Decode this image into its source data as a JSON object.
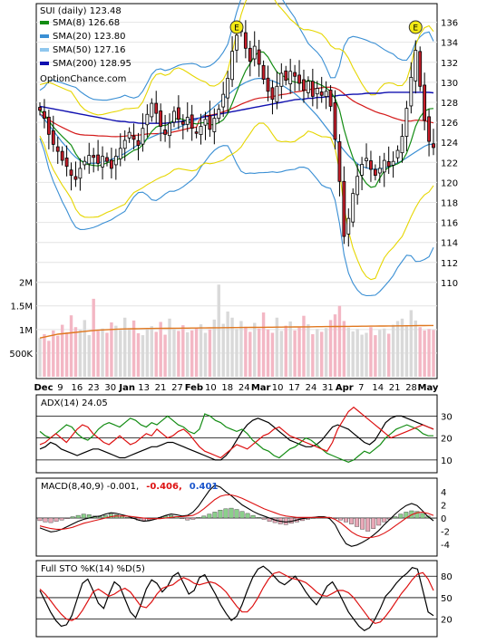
{
  "chart_data": [
    {
      "type": "candlestick",
      "panel": "price",
      "title": "SUI (daily) 123.48",
      "source_label": "OptionChance.com",
      "earnings_marker": "E",
      "legend": [
        {
          "name": "SMA(8) 126.68",
          "color": "#138c13"
        },
        {
          "name": "SMA(20) 123.80",
          "color": "#3a8fd4"
        },
        {
          "name": "SMA(50) 127.16",
          "color": "#8fc7ee"
        },
        {
          "name": "SMA(200) 128.95",
          "color": "#1010b0"
        }
      ],
      "y_ticks": [
        "110",
        "112",
        "114",
        "116",
        "118",
        "120",
        "122",
        "124",
        "126",
        "128",
        "130",
        "132",
        "134",
        "136"
      ],
      "ylim": [
        108,
        137.5
      ],
      "x_labels": [
        "Dec",
        "9",
        "16",
        "23",
        "30",
        "Jan",
        "13",
        "21",
        "27",
        "Feb",
        "10",
        "18",
        "24",
        "Mar",
        "10",
        "17",
        "24",
        "31",
        "Apr",
        "7",
        "14",
        "21",
        "28",
        "May"
      ],
      "last_close": 123.48,
      "price_path": [
        127.2,
        126.4,
        124.8,
        123.8,
        123.1,
        122.2,
        121.6,
        120.7,
        120.3,
        121.4,
        122.1,
        122.7,
        122.5,
        121.9,
        122.6,
        122.1,
        121.4,
        122.6,
        123.4,
        124.2,
        125.0,
        124.3,
        123.7,
        125.4,
        126.8,
        127.9,
        126.9,
        125.6,
        124.8,
        125.9,
        127.1,
        126.3,
        125.8,
        126.5,
        125.4,
        124.9,
        125.6,
        126.3,
        125.3,
        126.4,
        127.3,
        128.8,
        130.4,
        133.1,
        134.7,
        135.2,
        133.4,
        132.1,
        133.6,
        131.8,
        130.3,
        129.1,
        128.3,
        129.6,
        130.9,
        130.2,
        131.1,
        130.6,
        129.9,
        129.2,
        130.1,
        128.6,
        129.4,
        128.7,
        129.1,
        127.6,
        124.3,
        120.1,
        114.6,
        116.4,
        118.9,
        120.6,
        121.8,
        122.4,
        121.3,
        120.7,
        121.4,
        122.2,
        121.6,
        122.1,
        123.2,
        124.6,
        127.4,
        130.5,
        133.2,
        129.6,
        126.2,
        124.1,
        123.48
      ],
      "sma20_path": [
        126.8,
        126.3,
        125.7,
        125.1,
        124.5,
        123.9,
        123.4,
        122.8,
        122.4,
        122.1,
        122.0,
        121.9,
        121.9,
        122.0,
        122.1,
        122.2,
        122.4,
        122.6,
        122.8,
        123.1,
        123.4,
        123.7,
        124.0,
        124.3,
        124.5,
        124.7,
        124.9,
        125.0,
        125.2,
        125.3,
        125.5,
        125.7,
        125.9,
        126.1,
        126.3,
        126.6,
        126.9,
        127.3,
        127.7,
        128.1,
        128.5,
        128.9,
        129.3,
        129.6,
        129.9,
        130.1,
        130.3,
        130.4,
        130.4,
        130.3,
        130.2,
        130.0,
        129.8,
        129.5,
        129.2,
        128.9,
        128.5,
        128.1,
        127.6,
        127.1,
        126.6,
        126.0,
        125.4,
        124.8,
        124.2,
        123.6,
        123.0,
        122.5,
        122.1,
        121.7,
        121.5,
        121.4,
        121.3,
        121.3,
        121.4,
        121.5,
        121.7,
        121.9,
        122.1,
        122.4,
        122.7,
        123.0,
        123.3,
        123.6,
        123.8,
        123.8
      ],
      "sma200_path": [
        127.6,
        127.5,
        127.4,
        127.3,
        127.2,
        127.1,
        127.0,
        126.9,
        126.8,
        126.7,
        126.6,
        126.5,
        126.4,
        126.3,
        126.2,
        126.1,
        126.1,
        126.0,
        126.0,
        125.9,
        125.9,
        125.9,
        125.9,
        125.9,
        125.9,
        126.0,
        126.0,
        126.1,
        126.2,
        126.3,
        126.4,
        126.5,
        126.6,
        126.7,
        126.8,
        126.9,
        127.0,
        127.1,
        127.2,
        127.3,
        127.4,
        127.5,
        127.6,
        127.7,
        127.8,
        127.9,
        128.0,
        128.1,
        128.2,
        128.3,
        128.3,
        128.4,
        128.4,
        128.5,
        128.5,
        128.6,
        128.6,
        128.7,
        128.7,
        128.8,
        128.8,
        128.8,
        128.9,
        128.9,
        128.9,
        128.9,
        129.0,
        129.0,
        129.0,
        129.0,
        129.0,
        129.0,
        129.0,
        129.0,
        129.0,
        128.95
      ]
    },
    {
      "type": "bar",
      "panel": "volume",
      "y_ticks": [
        "500K",
        "1M",
        "1.5M",
        "2M"
      ],
      "ylim": [
        0,
        2300000
      ],
      "values": [
        820000,
        900000,
        760000,
        980000,
        870000,
        1100000,
        940000,
        1300000,
        1050000,
        990000,
        1200000,
        880000,
        1650000,
        970000,
        1020000,
        930000,
        1150000,
        1080000,
        990000,
        1250000,
        1030000,
        1190000,
        920000,
        880000,
        1010000,
        1070000,
        950000,
        1160000,
        890000,
        1230000,
        1010000,
        970000,
        1090000,
        940000,
        980000,
        1040000,
        1110000,
        930000,
        1000000,
        1210000,
        1950000,
        1120000,
        1380000,
        1250000,
        1010000,
        1180000,
        1060000,
        950000,
        1140000,
        1020000,
        1360000,
        1000000,
        930000,
        1250000,
        970000,
        1080000,
        1170000,
        980000,
        1040000,
        1290000,
        1110000,
        900000,
        1010000,
        950000,
        1030000,
        1200000,
        1320000,
        1500000,
        1180000,
        1040000,
        960000,
        1010000,
        890000,
        930000,
        1050000,
        880000,
        990000,
        1020000,
        910000,
        1100000,
        1180000,
        1230000,
        1090000,
        1410000,
        1190000,
        1050000,
        980000,
        1010000,
        990000
      ],
      "avg_path": [
        820000,
        840000,
        860000,
        880000,
        900000,
        910000,
        920000,
        930000,
        940000,
        950000,
        960000,
        970000,
        980000,
        985000,
        990000,
        995000,
        1000000,
        1005000,
        1010000,
        1012000,
        1014000,
        1016000,
        1018000,
        1020000,
        1021000,
        1022000,
        1023000,
        1024000,
        1025000,
        1026000,
        1027000,
        1028000,
        1029000,
        1030000,
        1031000,
        1032000,
        1033000,
        1034000,
        1035000,
        1036000,
        1037000,
        1038000,
        1039000,
        1040000,
        1041000,
        1042000,
        1043000,
        1044000,
        1045000,
        1046000,
        1047000,
        1048000,
        1049000,
        1050000,
        1051000,
        1052000,
        1053000,
        1054000,
        1055000,
        1056000,
        1057000,
        1058000,
        1059000,
        1060000,
        1061000,
        1062000,
        1063000,
        1064000,
        1065000,
        1066000,
        1067000,
        1068000,
        1069000,
        1070000,
        1071000,
        1072000,
        1073000,
        1074000,
        1075000,
        1076000,
        1077000,
        1078000,
        1079000,
        1080000,
        1081000,
        1082000,
        1083000,
        1084000,
        1085000
      ]
    },
    {
      "type": "line",
      "panel": "adx",
      "title": "ADX(14) 24.05",
      "y_ticks": [
        "10",
        "20",
        "30"
      ],
      "ylim": [
        5,
        38
      ],
      "series": [
        {
          "name": "ADX",
          "color": "#000000",
          "values": [
            15,
            16,
            18,
            17,
            15,
            14,
            13,
            12,
            13,
            14,
            15,
            15,
            14,
            13,
            12,
            11,
            11,
            12,
            13,
            14,
            15,
            16,
            16,
            17,
            18,
            18,
            17,
            16,
            15,
            14,
            13,
            12,
            11,
            10,
            10,
            12,
            15,
            19,
            23,
            26,
            28,
            29,
            28,
            27,
            25,
            23,
            21,
            19,
            18,
            17,
            16,
            16,
            17,
            19,
            22,
            25,
            26,
            25,
            24,
            22,
            20,
            18,
            17,
            19,
            23,
            27,
            29,
            30,
            30,
            29,
            28,
            27,
            26,
            25,
            24.05
          ]
        },
        {
          "name": "+DI",
          "color": "#138c13",
          "values": [
            23,
            21,
            20,
            22,
            24,
            26,
            25,
            22,
            20,
            19,
            21,
            24,
            26,
            27,
            26,
            25,
            27,
            29,
            28,
            26,
            25,
            27,
            26,
            28,
            30,
            28,
            26,
            25,
            23,
            22,
            24,
            31,
            30,
            28,
            27,
            25,
            24,
            23,
            24,
            22,
            19,
            17,
            15,
            14,
            12,
            11,
            13,
            15,
            16,
            18,
            20,
            19,
            17,
            15,
            13,
            12,
            11,
            10,
            9,
            10,
            12,
            14,
            13,
            15,
            17,
            20,
            22,
            24,
            25,
            26,
            25,
            24,
            22,
            21,
            21
          ]
        },
        {
          "name": "-DI",
          "color": "#dd1111",
          "values": [
            17,
            18,
            20,
            22,
            20,
            18,
            21,
            24,
            26,
            25,
            22,
            20,
            18,
            17,
            19,
            21,
            19,
            17,
            18,
            20,
            22,
            21,
            24,
            22,
            20,
            21,
            23,
            24,
            22,
            19,
            16,
            14,
            13,
            12,
            11,
            13,
            15,
            17,
            16,
            15,
            17,
            19,
            21,
            22,
            24,
            25,
            23,
            21,
            20,
            19,
            18,
            17,
            16,
            15,
            14,
            18,
            24,
            28,
            32,
            34,
            32,
            30,
            28,
            26,
            24,
            22,
            20,
            21,
            22,
            23,
            24,
            25,
            26,
            25,
            24
          ]
        }
      ]
    },
    {
      "type": "bar",
      "panel": "macd",
      "title": "MACD(8,40,9) -0.001,",
      "macd_value": "-0.406,",
      "signal_value": "0.401",
      "y_ticks": [
        "-4",
        "-2",
        "0",
        "2",
        "4"
      ],
      "ylim": [
        -5.5,
        5.5
      ],
      "histogram": [
        -0.4,
        -0.6,
        -0.7,
        -0.5,
        -0.3,
        -0.1,
        0.2,
        0.4,
        0.6,
        0.5,
        0.3,
        0.2,
        0.4,
        0.6,
        0.5,
        0.3,
        0.1,
        -0.1,
        -0.3,
        -0.4,
        -0.3,
        -0.2,
        0.1,
        0.3,
        0.4,
        0.2,
        -0.1,
        -0.3,
        -0.2,
        0.1,
        0.3,
        0.6,
        0.9,
        1.2,
        1.4,
        1.5,
        1.3,
        1.0,
        0.7,
        0.4,
        0.1,
        -0.2,
        -0.5,
        -0.7,
        -0.9,
        -1.0,
        -0.8,
        -0.6,
        -0.4,
        -0.2,
        0.0,
        0.1,
        0.2,
        0.1,
        -0.1,
        -0.3,
        -0.6,
        -0.9,
        -1.3,
        -1.7,
        -2.0,
        -1.6,
        -1.1,
        -0.6,
        -0.2,
        0.2,
        0.6,
        0.9,
        1.1,
        1.0,
        0.7,
        0.3,
        0.0
      ],
      "macd": [
        -1.5,
        -1.8,
        -2.1,
        -2.0,
        -1.7,
        -1.3,
        -0.9,
        -0.5,
        -0.2,
        0.0,
        0.2,
        0.3,
        0.6,
        0.8,
        0.7,
        0.5,
        0.3,
        0.0,
        -0.3,
        -0.5,
        -0.4,
        -0.2,
        0.1,
        0.4,
        0.6,
        0.5,
        0.3,
        0.4,
        0.9,
        1.8,
        3.0,
        4.2,
        5.0,
        4.7,
        4.0,
        3.4,
        2.7,
        2.0,
        1.5,
        1.0,
        0.6,
        0.3,
        0.0,
        -0.3,
        -0.5,
        -0.6,
        -0.5,
        -0.3,
        -0.1,
        0.0,
        0.1,
        0.2,
        0.2,
        -0.1,
        -1.0,
        -2.6,
        -3.9,
        -4.3,
        -4.1,
        -3.7,
        -3.2,
        -2.6,
        -1.9,
        -1.0,
        -0.2,
        0.6,
        1.3,
        1.9,
        2.2,
        1.9,
        1.1,
        0.2,
        -0.406
      ],
      "signal": [
        -1.2,
        -1.4,
        -1.6,
        -1.7,
        -1.7,
        -1.6,
        -1.4,
        -1.1,
        -0.8,
        -0.6,
        -0.4,
        -0.2,
        0.0,
        0.2,
        0.3,
        0.3,
        0.3,
        0.2,
        0.1,
        0.0,
        -0.1,
        -0.1,
        -0.1,
        0.0,
        0.1,
        0.2,
        0.2,
        0.3,
        0.4,
        0.8,
        1.4,
        2.1,
        2.8,
        3.3,
        3.5,
        3.5,
        3.3,
        3.0,
        2.6,
        2.2,
        1.8,
        1.4,
        1.1,
        0.8,
        0.5,
        0.3,
        0.2,
        0.1,
        0.1,
        0.1,
        0.1,
        0.1,
        0.1,
        0.1,
        -0.2,
        -0.7,
        -1.4,
        -2.1,
        -2.6,
        -2.9,
        -3.0,
        -2.9,
        -2.7,
        -2.3,
        -1.8,
        -1.2,
        -0.6,
        0.0,
        0.5,
        0.8,
        0.9,
        0.7,
        0.401
      ]
    },
    {
      "type": "line",
      "panel": "stochastic",
      "title": "Full STO %K(14) %D(5)",
      "y_ticks": [
        "20",
        "50",
        "80"
      ],
      "ylim": [
        -2,
        98
      ],
      "series": [
        {
          "name": "%K",
          "color": "#000000",
          "values": [
            60,
            45,
            30,
            18,
            10,
            12,
            25,
            48,
            70,
            76,
            60,
            42,
            35,
            55,
            72,
            66,
            48,
            30,
            22,
            40,
            62,
            75,
            70,
            58,
            66,
            80,
            85,
            70,
            55,
            60,
            78,
            82,
            68,
            55,
            40,
            28,
            18,
            24,
            40,
            60,
            78,
            90,
            94,
            88,
            80,
            72,
            68,
            74,
            80,
            70,
            58,
            48,
            40,
            52,
            66,
            72,
            60,
            45,
            30,
            20,
            10,
            4,
            8,
            20,
            35,
            52,
            60,
            70,
            78,
            84,
            92,
            90,
            60,
            30,
            25
          ]
        },
        {
          "name": "%D",
          "color": "#dd1111",
          "values": [
            62,
            55,
            46,
            36,
            27,
            20,
            18,
            22,
            32,
            45,
            58,
            62,
            57,
            52,
            55,
            60,
            63,
            58,
            48,
            38,
            36,
            44,
            55,
            63,
            66,
            68,
            74,
            78,
            75,
            70,
            68,
            70,
            72,
            70,
            65,
            58,
            48,
            38,
            30,
            30,
            38,
            50,
            64,
            76,
            84,
            86,
            82,
            78,
            76,
            74,
            71,
            65,
            58,
            53,
            52,
            56,
            60,
            60,
            57,
            50,
            40,
            30,
            20,
            14,
            16,
            24,
            34,
            45,
            56,
            65,
            75,
            83,
            85,
            76,
            60
          ]
        }
      ]
    }
  ]
}
